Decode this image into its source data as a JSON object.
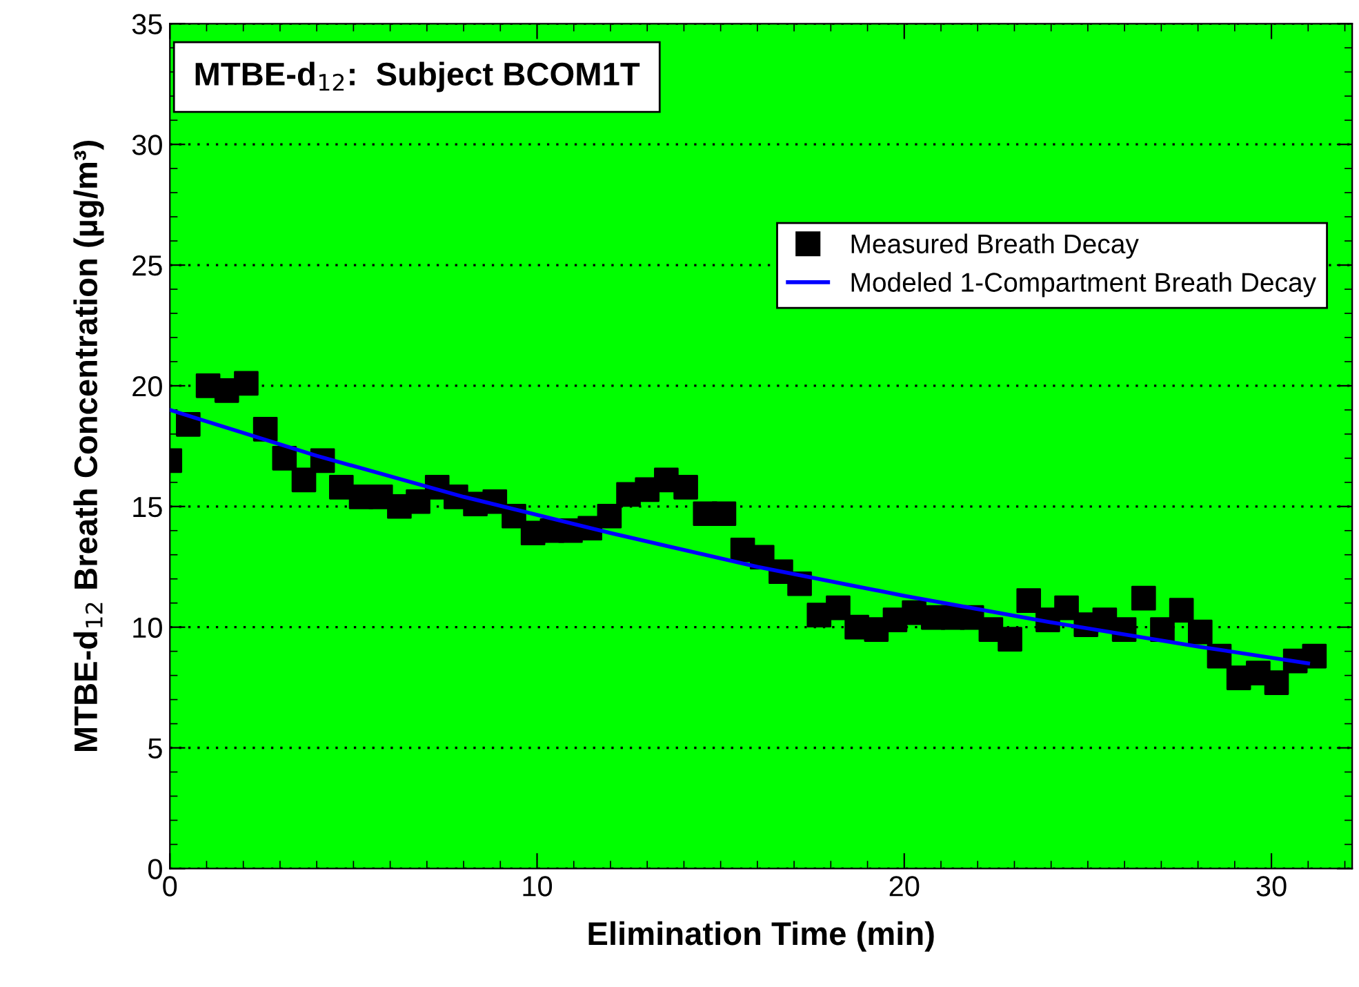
{
  "chart_data": {
    "type": "scatter",
    "title": "MTBE-d$_{12}$:  Subject BCOM1T",
    "xlabel": "Elimination Time (min)",
    "ylabel": "MTBE-d$_{12}$ Breath Concentration (µg/m³)",
    "xlim": [
      0,
      32.2
    ],
    "xticks": [
      0,
      10,
      20,
      30
    ],
    "ylim": [
      0,
      35
    ],
    "yticks": [
      0,
      5,
      10,
      15,
      20,
      25,
      30,
      35
    ],
    "grid": "y",
    "legend": "top right",
    "series": [
      {
        "name": "Measured Breath Decay",
        "marker": "square",
        "color": "#000000",
        "x": [
          0,
          0.5,
          1.04,
          1.55,
          2.08,
          2.6,
          3.12,
          3.65,
          4.16,
          4.67,
          5.21,
          5.74,
          6.25,
          6.76,
          7.28,
          7.79,
          8.32,
          8.85,
          9.37,
          9.89,
          10.41,
          10.91,
          11.44,
          11.97,
          12.49,
          13.0,
          13.52,
          14.05,
          14.58,
          15.09,
          15.6,
          16.13,
          16.64,
          17.15,
          17.68,
          18.2,
          18.71,
          19.24,
          19.75,
          20.27,
          20.79,
          21.32,
          21.84,
          22.36,
          22.88,
          23.39,
          23.91,
          24.42,
          24.95,
          25.46,
          25.99,
          26.52,
          27.03,
          27.55,
          28.06,
          28.58,
          29.11,
          29.64,
          30.14,
          30.65,
          31.17
        ],
        "values": [
          16.9,
          18.4,
          20.0,
          19.8,
          20.1,
          18.2,
          17.0,
          16.1,
          16.9,
          15.8,
          15.4,
          15.4,
          15.0,
          15.2,
          15.8,
          15.4,
          15.1,
          15.2,
          14.6,
          13.9,
          14.0,
          14.0,
          14.1,
          14.6,
          15.5,
          15.7,
          16.1,
          15.8,
          14.7,
          14.7,
          13.2,
          12.9,
          12.3,
          11.8,
          10.5,
          10.8,
          10.0,
          9.9,
          10.3,
          10.6,
          10.4,
          10.4,
          10.4,
          9.9,
          9.5,
          11.1,
          10.3,
          10.8,
          10.1,
          10.3,
          9.9,
          11.2,
          9.9,
          10.7,
          9.8,
          8.8,
          7.9,
          8.1,
          7.7,
          8.6,
          8.8
        ]
      },
      {
        "name": "Modeled 1-Compartment Breath Decay",
        "type": "line",
        "marker": "none",
        "line_style": "solid",
        "color": "#0000ff",
        "x": [
          0,
          4,
          8,
          12,
          16,
          20,
          24,
          28,
          31
        ],
        "values": [
          19.0,
          17.1,
          15.4,
          13.9,
          12.5,
          11.3,
          10.2,
          9.2,
          8.5
        ]
      }
    ]
  }
}
